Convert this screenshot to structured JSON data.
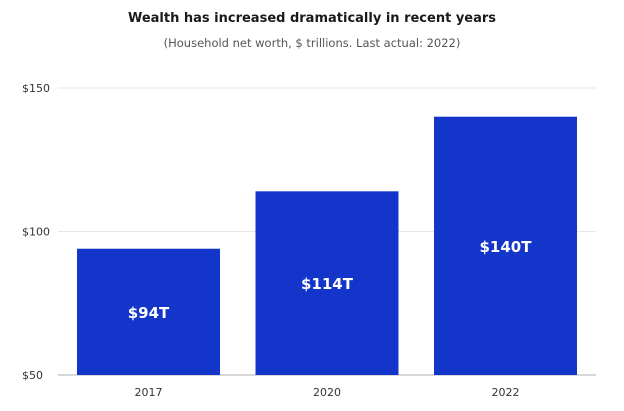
{
  "chart_data": {
    "type": "bar",
    "title": "Wealth has increased dramatically in recent years",
    "subtitle": "(Household net worth, $ trillions. Last actual: 2022)",
    "categories": [
      "2017",
      "2020",
      "2022"
    ],
    "values": [
      94,
      114,
      140
    ],
    "data_labels": [
      "$94T",
      "$114T",
      "$140T"
    ],
    "ylim": [
      50,
      150
    ],
    "yticks": [
      50,
      100,
      150
    ],
    "ytick_labels": [
      "$50",
      "$100",
      "$150"
    ],
    "xlabel": "",
    "ylabel": "",
    "grid": true,
    "bar_color": "#1435c9",
    "grid_color": "#e6e6e6"
  }
}
